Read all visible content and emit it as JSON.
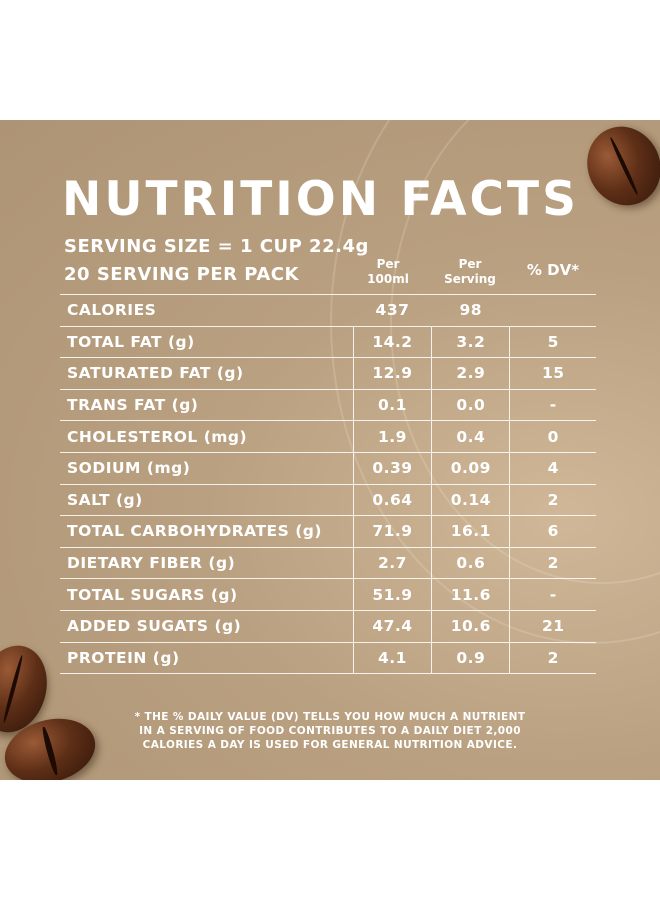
{
  "title": "NUTRITION FACTS",
  "serving": {
    "size": "SERVING SIZE = 1 CUP 22.4g",
    "per_pack": "20 SERVING PER PACK"
  },
  "columns": {
    "per100_line1": "Per",
    "per100_line2": "100ml",
    "perserving_line1": "Per",
    "perserving_line2": "Serving",
    "dv": "% DV*"
  },
  "rows": [
    {
      "name": "CALORIES",
      "per100": "437",
      "per_serving": "98",
      "dv": ""
    },
    {
      "name": "TOTAL FAT (g)",
      "per100": "14.2",
      "per_serving": "3.2",
      "dv": "5"
    },
    {
      "name": "SATURATED FAT (g)",
      "per100": "12.9",
      "per_serving": "2.9",
      "dv": "15"
    },
    {
      "name": "TRANS FAT (g)",
      "per100": "0.1",
      "per_serving": "0.0",
      "dv": "-"
    },
    {
      "name": "CHOLESTEROL (mg)",
      "per100": "1.9",
      "per_serving": "0.4",
      "dv": "0"
    },
    {
      "name": "SODIUM (mg)",
      "per100": "0.39",
      "per_serving": "0.09",
      "dv": "4"
    },
    {
      "name": "SALT (g)",
      "per100": "0.64",
      "per_serving": "0.14",
      "dv": "2"
    },
    {
      "name": "TOTAL CARBOHYDRATES (g)",
      "per100": "71.9",
      "per_serving": "16.1",
      "dv": "6"
    },
    {
      "name": "DIETARY FIBER (g)",
      "per100": "2.7",
      "per_serving": "0.6",
      "dv": "2"
    },
    {
      "name": "TOTAL SUGARS (g)",
      "per100": "51.9",
      "per_serving": "11.6",
      "dv": "-"
    },
    {
      "name": "ADDED SUGATS (g)",
      "per100": "47.4",
      "per_serving": "10.6",
      "dv": "21"
    },
    {
      "name": "PROTEIN (g)",
      "per100": "4.1",
      "per_serving": "0.9",
      "dv": "2"
    }
  ],
  "footnote": {
    "line1": "* THE % DAILY VALUE (DV) TELLS YOU HOW MUCH A NUTRIENT",
    "line2": "IN A SERVING OF FOOD CONTRIBUTES TO A DAILY DIET 2,000",
    "line3": "CALORIES A DAY IS USED FOR GENERAL NUTRITION ADVICE."
  },
  "colors": {
    "panel": "#b9a080",
    "text": "#ffffff",
    "bean": "#5e2f17"
  }
}
